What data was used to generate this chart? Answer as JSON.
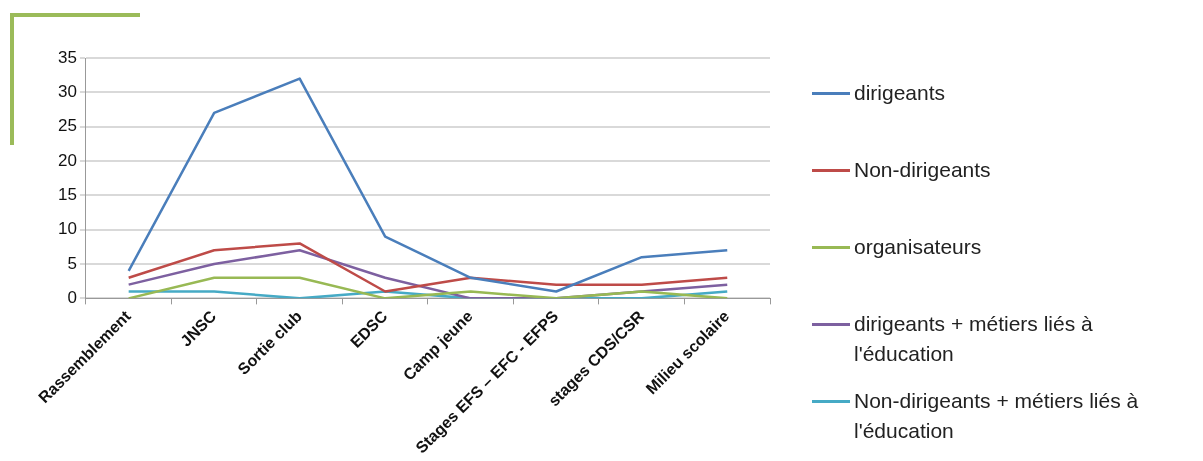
{
  "chart_data": {
    "type": "line",
    "categories": [
      "Rassemblement",
      "JNSC",
      "Sortie club",
      "EDSC",
      "Camp jeune",
      "Stages EFS – EFC - EFPS",
      "stages CDS/CSR",
      "Milieu scolaire"
    ],
    "series": [
      {
        "name": "dirigeants",
        "color": "#4a7ebb",
        "values": [
          4,
          27,
          32,
          9,
          3,
          1,
          6,
          7
        ]
      },
      {
        "name": "Non-dirigeants",
        "color": "#be4b48",
        "values": [
          3,
          7,
          8,
          1,
          3,
          2,
          2,
          3
        ]
      },
      {
        "name": "organisateurs",
        "color": "#98b954",
        "values": [
          0,
          3,
          3,
          0,
          1,
          0,
          1,
          0
        ]
      },
      {
        "name": "dirigeants + métiers liés à l'éducation",
        "color": "#7d60a0",
        "values": [
          2,
          5,
          7,
          3,
          0,
          0,
          1,
          2
        ]
      },
      {
        "name": "Non-dirigeants + métiers liés à l'éducation",
        "color": "#46aac5",
        "values": [
          1,
          1,
          0,
          1,
          0,
          0,
          0,
          1
        ]
      }
    ],
    "ylim": [
      0,
      35
    ],
    "yticks": [
      0,
      5,
      10,
      15,
      20,
      25,
      30,
      35
    ],
    "grid": "y",
    "legend": "right",
    "marker": "none",
    "line_style": "solid"
  }
}
